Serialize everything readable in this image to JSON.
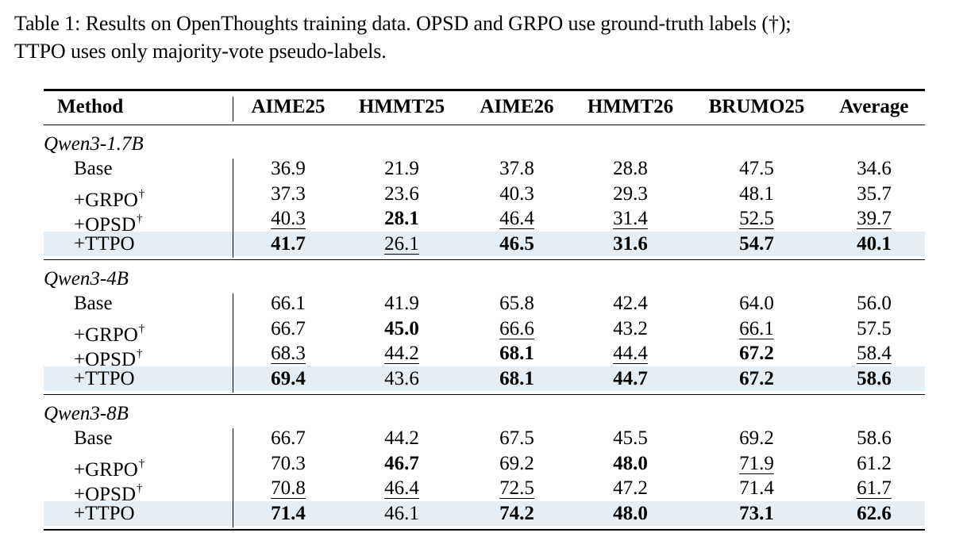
{
  "caption": {
    "line1": "Table 1: Results on OpenThoughts training data.  OPSD and GRPO use ground-truth labels (†);",
    "line2": "TTPO uses only majority-vote pseudo-labels."
  },
  "table": {
    "columns": [
      "Method",
      "AIME25",
      "HMMT25",
      "AIME26",
      "HMMT26",
      "BRUMO25",
      "Average"
    ],
    "dagger": "†",
    "groups": [
      {
        "name": "Qwen3-1.7B",
        "rows": [
          {
            "method": "Base",
            "dagger": false,
            "highlight": false,
            "values": [
              "36.9",
              "21.9",
              "37.8",
              "28.8",
              "47.5",
              "34.6"
            ],
            "style": [
              "",
              "",
              "",
              "",
              "",
              ""
            ]
          },
          {
            "method": "+GRPO",
            "dagger": true,
            "highlight": false,
            "values": [
              "37.3",
              "23.6",
              "40.3",
              "29.3",
              "48.1",
              "35.7"
            ],
            "style": [
              "",
              "",
              "",
              "",
              "",
              ""
            ]
          },
          {
            "method": "+OPSD",
            "dagger": true,
            "highlight": false,
            "values": [
              "40.3",
              "28.1",
              "46.4",
              "31.4",
              "52.5",
              "39.7"
            ],
            "style": [
              "u",
              "b",
              "u",
              "u",
              "u",
              "u"
            ]
          },
          {
            "method": "+TTPO",
            "dagger": false,
            "highlight": true,
            "values": [
              "41.7",
              "26.1",
              "46.5",
              "31.6",
              "54.7",
              "40.1"
            ],
            "style": [
              "b",
              "u",
              "b",
              "b",
              "b",
              "b"
            ]
          }
        ]
      },
      {
        "name": "Qwen3-4B",
        "rows": [
          {
            "method": "Base",
            "dagger": false,
            "highlight": false,
            "values": [
              "66.1",
              "41.9",
              "65.8",
              "42.4",
              "64.0",
              "56.0"
            ],
            "style": [
              "",
              "",
              "",
              "",
              "",
              ""
            ]
          },
          {
            "method": "+GRPO",
            "dagger": true,
            "highlight": false,
            "values": [
              "66.7",
              "45.0",
              "66.6",
              "43.2",
              "66.1",
              "57.5"
            ],
            "style": [
              "",
              "b",
              "u",
              "",
              "u",
              ""
            ]
          },
          {
            "method": "+OPSD",
            "dagger": true,
            "highlight": false,
            "values": [
              "68.3",
              "44.2",
              "68.1",
              "44.4",
              "67.2",
              "58.4"
            ],
            "style": [
              "u",
              "u",
              "b",
              "u",
              "b",
              "u"
            ]
          },
          {
            "method": "+TTPO",
            "dagger": false,
            "highlight": true,
            "values": [
              "69.4",
              "43.6",
              "68.1",
              "44.7",
              "67.2",
              "58.6"
            ],
            "style": [
              "b",
              "",
              "b",
              "b",
              "b",
              "b"
            ]
          }
        ]
      },
      {
        "name": "Qwen3-8B",
        "rows": [
          {
            "method": "Base",
            "dagger": false,
            "highlight": false,
            "values": [
              "66.7",
              "44.2",
              "67.5",
              "45.5",
              "69.2",
              "58.6"
            ],
            "style": [
              "",
              "",
              "",
              "",
              "",
              ""
            ]
          },
          {
            "method": "+GRPO",
            "dagger": true,
            "highlight": false,
            "values": [
              "70.3",
              "46.7",
              "69.2",
              "48.0",
              "71.9",
              "61.2"
            ],
            "style": [
              "",
              "b",
              "",
              "b",
              "u",
              ""
            ]
          },
          {
            "method": "+OPSD",
            "dagger": true,
            "highlight": false,
            "values": [
              "70.8",
              "46.4",
              "72.5",
              "47.2",
              "71.4",
              "61.7"
            ],
            "style": [
              "u",
              "u",
              "u",
              "",
              "",
              "u"
            ]
          },
          {
            "method": "+TTPO",
            "dagger": false,
            "highlight": true,
            "values": [
              "71.4",
              "46.1",
              "74.2",
              "48.0",
              "73.1",
              "62.6"
            ],
            "style": [
              "b",
              "",
              "b",
              "b",
              "b",
              "b"
            ]
          }
        ]
      }
    ]
  },
  "colors": {
    "highlight_row": "#e3eef7",
    "text": "#000000"
  }
}
